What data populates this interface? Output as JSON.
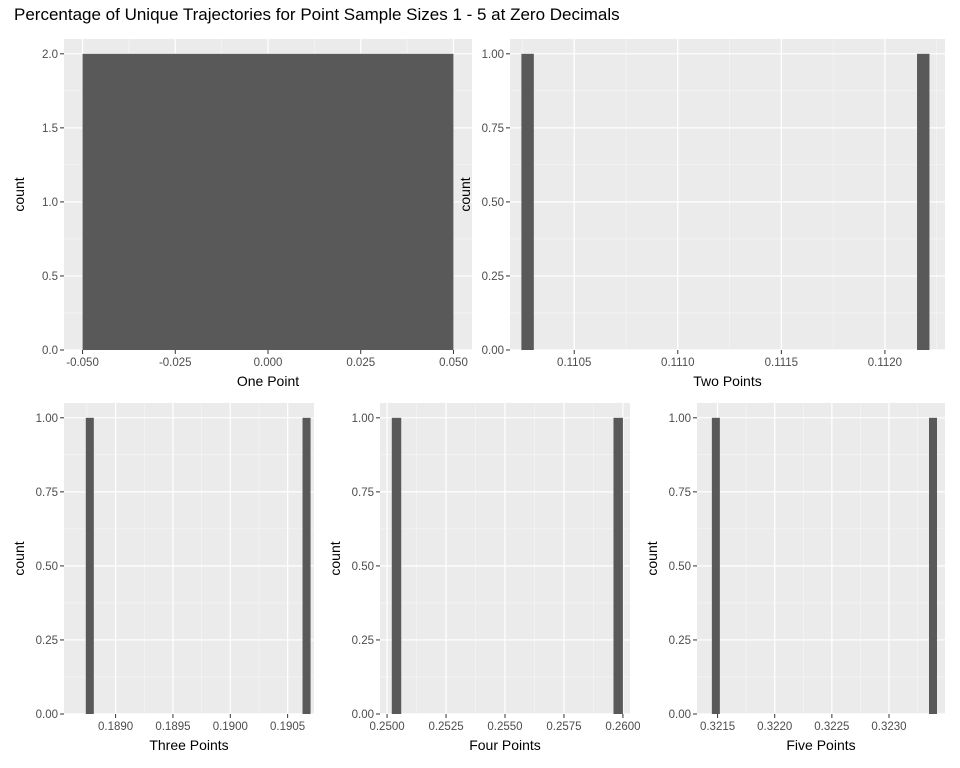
{
  "title": "Percentage of Unique Trajectories for Point Sample Sizes 1 - 5 at Zero Decimals",
  "colors": {
    "panel_bg": "#EBEBEB",
    "grid_major": "#FFFFFF",
    "bar": "#595959",
    "tick_label": "#4D4D4D",
    "axis_title": "#000000"
  },
  "chart_data": [
    {
      "type": "bar",
      "xlabel": "One Point",
      "ylabel": "count",
      "xlim": [
        -0.055,
        0.055
      ],
      "ylim": [
        0,
        2.1
      ],
      "xticks": [
        -0.05,
        -0.025,
        0,
        0.025,
        0.05
      ],
      "xtick_labels": [
        "-0.050",
        "-0.025",
        "0.000",
        "0.025",
        "0.050"
      ],
      "yticks": [
        0,
        0.5,
        1,
        1.5,
        2
      ],
      "ytick_labels": [
        "0.0",
        "0.5",
        "1.0",
        "1.5",
        "2.0"
      ],
      "bars": [
        {
          "x0": -0.05,
          "x1": 0.05,
          "count": 2
        }
      ]
    },
    {
      "type": "bar",
      "xlabel": "Two Points",
      "ylabel": "count",
      "xlim": [
        0.11019,
        0.11229
      ],
      "ylim": [
        0,
        1.05
      ],
      "xticks": [
        0.1105,
        0.111,
        0.1115,
        0.112
      ],
      "xtick_labels": [
        "0.1105",
        "0.1110",
        "0.1115",
        "0.1120"
      ],
      "yticks": [
        0,
        0.25,
        0.5,
        0.75,
        1
      ],
      "ytick_labels": [
        "0.00",
        "0.25",
        "0.50",
        "0.75",
        "1.00"
      ],
      "bars": [
        {
          "x0": 0.110245,
          "x1": 0.110305,
          "count": 1
        },
        {
          "x0": 0.112155,
          "x1": 0.112215,
          "count": 1
        }
      ]
    },
    {
      "type": "bar",
      "xlabel": "Three Points",
      "ylabel": "count",
      "xlim": [
        0.18855,
        0.19073
      ],
      "ylim": [
        0,
        1.05
      ],
      "xticks": [
        0.189,
        0.1895,
        0.19,
        0.1905
      ],
      "xtick_labels": [
        "0.1890",
        "0.1895",
        "0.1900",
        "0.1905"
      ],
      "yticks": [
        0,
        0.25,
        0.5,
        0.75,
        1
      ],
      "ytick_labels": [
        "0.00",
        "0.25",
        "0.50",
        "0.75",
        "1.00"
      ],
      "bars": [
        {
          "x0": 0.18874,
          "x1": 0.18881,
          "count": 1
        },
        {
          "x0": 0.19063,
          "x1": 0.1907,
          "count": 1
        }
      ]
    },
    {
      "type": "bar",
      "xlabel": "Four Points",
      "ylabel": "count",
      "xlim": [
        0.2497,
        0.2603
      ],
      "ylim": [
        0,
        1.05
      ],
      "xticks": [
        0.25,
        0.2525,
        0.255,
        0.2575,
        0.26
      ],
      "xtick_labels": [
        "0.2500",
        "0.2525",
        "0.2550",
        "0.2575",
        "0.2600"
      ],
      "yticks": [
        0,
        0.25,
        0.5,
        0.75,
        1
      ],
      "ytick_labels": [
        "0.00",
        "0.25",
        "0.50",
        "0.75",
        "1.00"
      ],
      "bars": [
        {
          "x0": 0.2502,
          "x1": 0.2506,
          "count": 1
        },
        {
          "x0": 0.2596,
          "x1": 0.26,
          "count": 1
        }
      ]
    },
    {
      "type": "bar",
      "xlabel": "Five Points",
      "ylabel": "count",
      "xlim": [
        0.32132,
        0.32349
      ],
      "ylim": [
        0,
        1.05
      ],
      "xticks": [
        0.3215,
        0.322,
        0.3225,
        0.323
      ],
      "xtick_labels": [
        "0.3215",
        "0.3220",
        "0.3225",
        "0.3230"
      ],
      "yticks": [
        0,
        0.25,
        0.5,
        0.75,
        1
      ],
      "ytick_labels": [
        "0.00",
        "0.25",
        "0.50",
        "0.75",
        "1.00"
      ],
      "bars": [
        {
          "x0": 0.32145,
          "x1": 0.32152,
          "count": 1
        },
        {
          "x0": 0.32335,
          "x1": 0.32342,
          "count": 1
        }
      ]
    }
  ]
}
